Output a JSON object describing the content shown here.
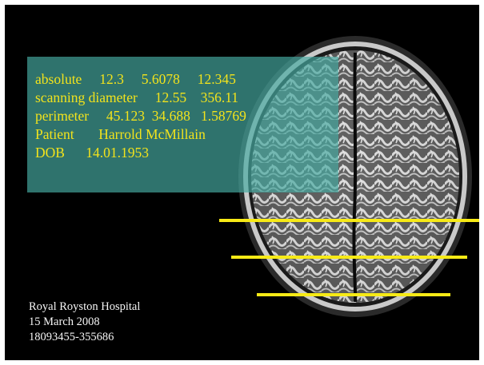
{
  "measurements": {
    "row1": {
      "label": "absolute",
      "values": [
        "12.3",
        "5.6078",
        "12.345"
      ]
    },
    "row2": {
      "label": "scanning diameter",
      "values": [
        "12.55",
        "356.11"
      ]
    },
    "row3": {
      "label": "perimeter",
      "values": [
        "45.123",
        "34.688",
        "1.58769"
      ]
    }
  },
  "patient": {
    "label": "Patient",
    "name": "Harrold McMillain"
  },
  "dob": {
    "label": "DOB",
    "value": "14.01.1953"
  },
  "footer": {
    "hospital": "Royal Royston Hospital",
    "date": "15 March 2008",
    "record_id": "18093455-355686"
  },
  "colors": {
    "overlay_text": "#f2e31c",
    "scan_line": "#f7ea16",
    "overlay_box": "#46aaa0"
  }
}
